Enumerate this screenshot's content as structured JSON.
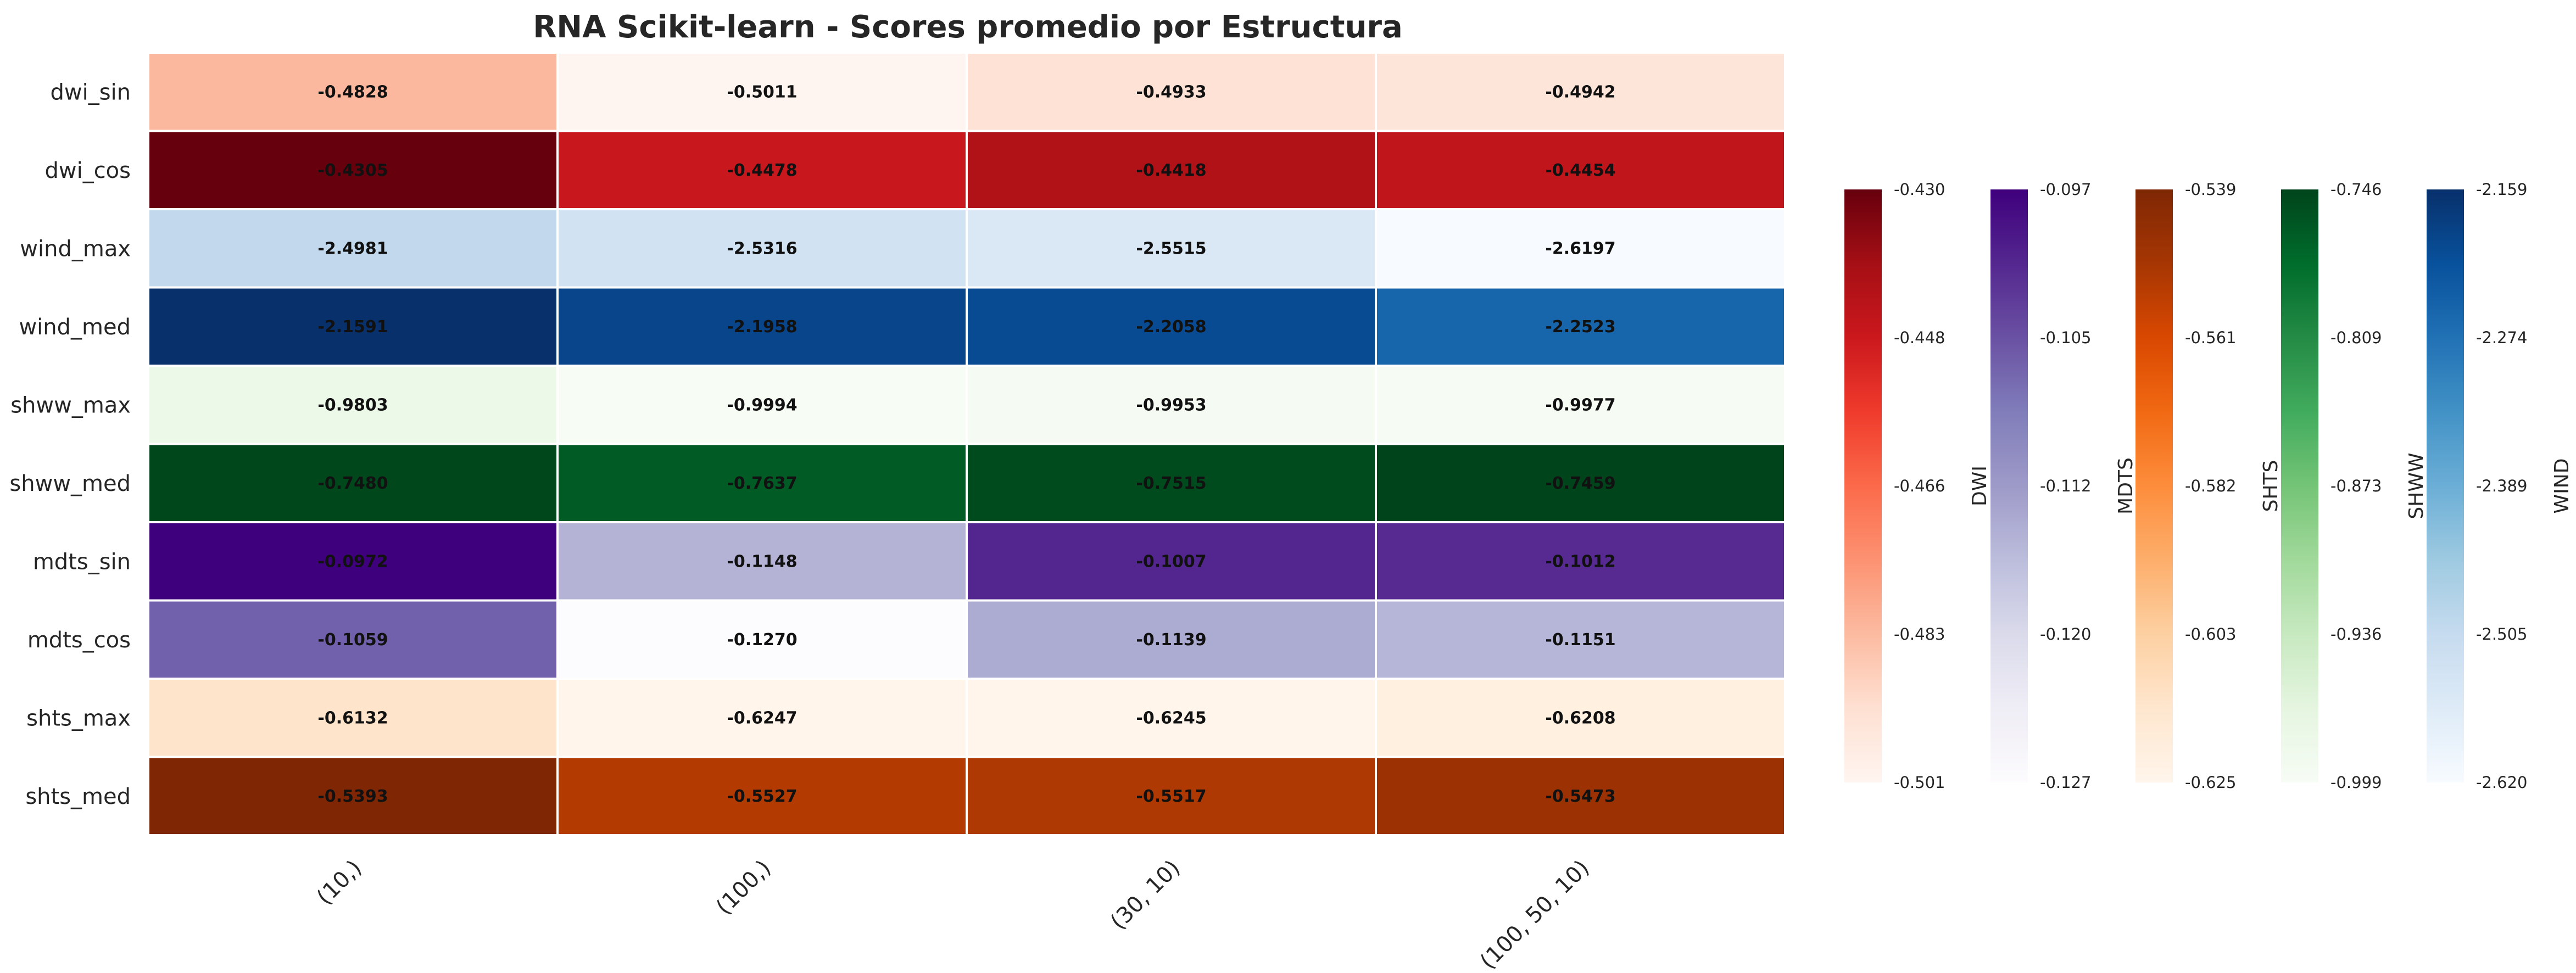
{
  "chart_data": {
    "type": "heatmap",
    "title": "RNA Scikit-learn - Scores promedio por Estructura",
    "columns": [
      "(10,)",
      "(100,)",
      "(30, 10)",
      "(100, 50, 10)"
    ],
    "rows": [
      {
        "label": "dwi_sin",
        "group": "DWI",
        "values": [
          "-0.4828",
          "-0.5011",
          "-0.4933",
          "-0.4942"
        ]
      },
      {
        "label": "dwi_cos",
        "group": "DWI",
        "values": [
          "-0.4305",
          "-0.4478",
          "-0.4418",
          "-0.4454"
        ]
      },
      {
        "label": "wind_max",
        "group": "WIND",
        "values": [
          "-2.4981",
          "-2.5316",
          "-2.5515",
          "-2.6197"
        ]
      },
      {
        "label": "wind_med",
        "group": "WIND",
        "values": [
          "-2.1591",
          "-2.1958",
          "-2.2058",
          "-2.2523"
        ]
      },
      {
        "label": "shww_max",
        "group": "SHWW",
        "values": [
          "-0.9803",
          "-0.9994",
          "-0.9953",
          "-0.9977"
        ]
      },
      {
        "label": "shww_med",
        "group": "SHWW",
        "values": [
          "-0.7480",
          "-0.7637",
          "-0.7515",
          "-0.7459"
        ]
      },
      {
        "label": "mdts_sin",
        "group": "MDTS",
        "values": [
          "-0.0972",
          "-0.1148",
          "-0.1007",
          "-0.1012"
        ]
      },
      {
        "label": "mdts_cos",
        "group": "MDTS",
        "values": [
          "-0.1059",
          "-0.1270",
          "-0.1139",
          "-0.1151"
        ]
      },
      {
        "label": "shts_max",
        "group": "SHTS",
        "values": [
          "-0.6132",
          "-0.6247",
          "-0.6245",
          "-0.6208"
        ]
      },
      {
        "label": "shts_med",
        "group": "SHTS",
        "values": [
          "-0.5393",
          "-0.5527",
          "-0.5517",
          "-0.5473"
        ]
      }
    ],
    "colorbars": [
      {
        "name": "DWI",
        "colormap": "Reds",
        "min": -0.501,
        "max": -0.43,
        "ticks": [
          "-0.430",
          "-0.448",
          "-0.466",
          "-0.483",
          "-0.501"
        ]
      },
      {
        "name": "MDTS",
        "colormap": "Purples",
        "min": -0.127,
        "max": -0.097,
        "ticks": [
          "-0.097",
          "-0.105",
          "-0.112",
          "-0.120",
          "-0.127"
        ]
      },
      {
        "name": "SHTS",
        "colormap": "Oranges",
        "min": -0.625,
        "max": -0.539,
        "ticks": [
          "-0.539",
          "-0.561",
          "-0.582",
          "-0.603",
          "-0.625"
        ]
      },
      {
        "name": "SHWW",
        "colormap": "Greens",
        "min": -0.999,
        "max": -0.746,
        "ticks": [
          "-0.746",
          "-0.809",
          "-0.873",
          "-0.936",
          "-0.999"
        ]
      },
      {
        "name": "WIND",
        "colormap": "Blues",
        "min": -2.62,
        "max": -2.159,
        "ticks": [
          "-2.159",
          "-2.274",
          "-2.389",
          "-2.505",
          "-2.620"
        ]
      }
    ],
    "colormaps": {
      "Reds": [
        "#fff5f0",
        "#fee0d2",
        "#fcbba1",
        "#fc9272",
        "#fb6a4a",
        "#ef3b2c",
        "#cb181d",
        "#a50f15",
        "#67000d"
      ],
      "Purples": [
        "#fcfbfd",
        "#efedf5",
        "#dadaeb",
        "#bcbddc",
        "#9e9ac8",
        "#807dba",
        "#6a51a3",
        "#54278f",
        "#3f007d"
      ],
      "Oranges": [
        "#fff5eb",
        "#fee6ce",
        "#fdd0a2",
        "#fdae6b",
        "#fd8d3c",
        "#f16913",
        "#d94801",
        "#a63603",
        "#7f2704"
      ],
      "Greens": [
        "#f7fcf5",
        "#e5f5e0",
        "#c7e9c0",
        "#a1d99b",
        "#74c476",
        "#41ab5d",
        "#238b45",
        "#006d2c",
        "#00441b"
      ],
      "Blues": [
        "#f7fbff",
        "#deebf7",
        "#c6dbef",
        "#9ecae1",
        "#6baed6",
        "#4292c6",
        "#2171b5",
        "#08519c",
        "#08306b"
      ]
    },
    "grid_lines_color": "#ffffff"
  }
}
